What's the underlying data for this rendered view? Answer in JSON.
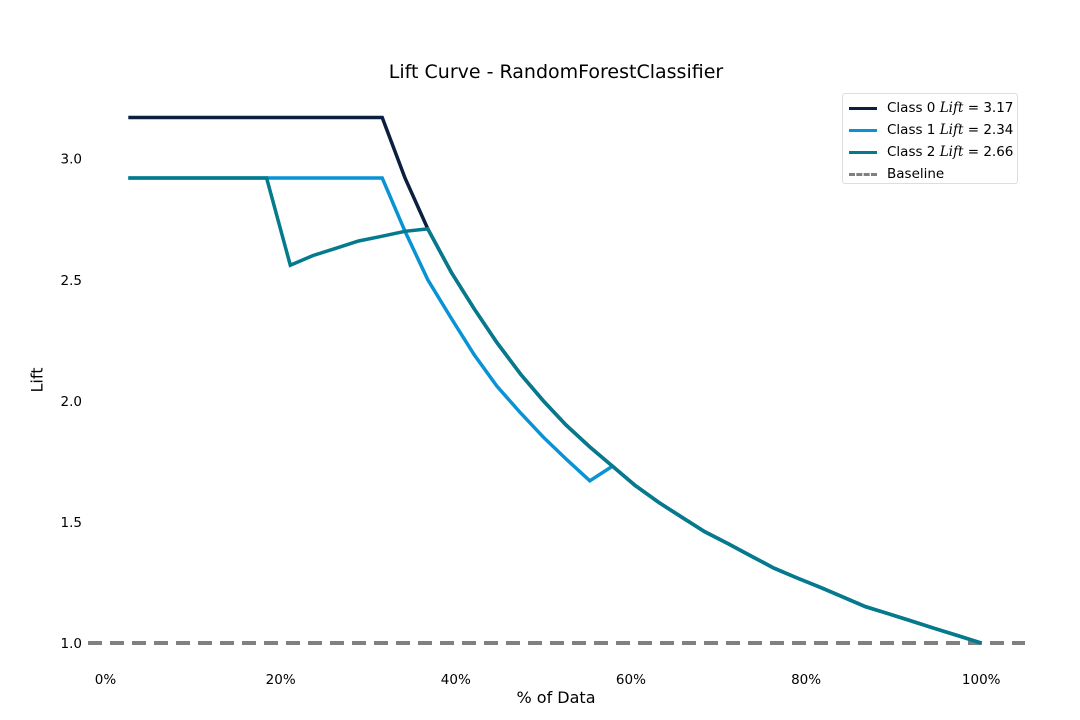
{
  "chart_data": {
    "type": "line",
    "title": "Lift Curve - RandomForestClassifier",
    "xlabel": "% of Data",
    "ylabel": "Lift",
    "xlim": [
      -2,
      105
    ],
    "ylim": [
      0.93,
      3.3
    ],
    "x_ticks": [
      0,
      20,
      40,
      60,
      80,
      100
    ],
    "x_tick_labels": [
      "0%",
      "20%",
      "40%",
      "60%",
      "80%",
      "100%"
    ],
    "y_ticks": [
      1.0,
      1.5,
      2.0,
      2.5,
      3.0
    ],
    "y_tick_labels": [
      "1.0",
      "1.5",
      "2.0",
      "2.5",
      "3.0"
    ],
    "grid": false,
    "legend_position": "top-right",
    "series": [
      {
        "name": "Class 0 Lift = 3.17",
        "legend_prefix": "Class 0 ",
        "legend_italic": "Lift",
        "legend_suffix": " = 3.17",
        "color": "#0b1f3f",
        "x": [
          2.6,
          31.6,
          34.2,
          36.8,
          39.5,
          42.1,
          44.7,
          47.4,
          50.0,
          52.6,
          55.3,
          57.9,
          60.5,
          63.2,
          65.8,
          68.4,
          71.1,
          73.7,
          76.3,
          78.9,
          81.6,
          84.2,
          86.8,
          89.5,
          92.1,
          94.7,
          97.4,
          100.0
        ],
        "y": [
          3.17,
          3.17,
          2.92,
          2.71,
          2.53,
          2.38,
          2.24,
          2.11,
          2.0,
          1.9,
          1.81,
          1.73,
          1.65,
          1.58,
          1.52,
          1.46,
          1.41,
          1.36,
          1.31,
          1.27,
          1.23,
          1.19,
          1.15,
          1.12,
          1.09,
          1.06,
          1.03,
          1.0
        ]
      },
      {
        "name": "Class 1 Lift = 2.34",
        "legend_prefix": "Class 1 ",
        "legend_italic": "Lift",
        "legend_suffix": " = 2.34",
        "color": "#0993d4",
        "x": [
          2.6,
          31.6,
          34.2,
          36.8,
          39.5,
          42.1,
          44.7,
          47.4,
          50.0,
          52.6,
          55.3,
          57.9,
          60.5,
          63.2,
          65.8,
          68.4,
          71.1,
          73.7,
          76.3,
          78.9,
          81.6,
          84.2,
          86.8,
          89.5,
          92.1,
          94.7,
          97.4,
          100.0
        ],
        "y": [
          2.92,
          2.92,
          2.7,
          2.5,
          2.34,
          2.19,
          2.06,
          1.95,
          1.85,
          1.76,
          1.67,
          1.73,
          1.65,
          1.58,
          1.52,
          1.46,
          1.41,
          1.36,
          1.31,
          1.27,
          1.23,
          1.19,
          1.15,
          1.12,
          1.09,
          1.06,
          1.03,
          1.0
        ]
      },
      {
        "name": "Class 2 Lift = 2.66",
        "legend_prefix": "Class 2 ",
        "legend_italic": "Lift",
        "legend_suffix": " = 2.66",
        "color": "#047a8c",
        "x": [
          2.6,
          18.4,
          21.1,
          23.7,
          26.3,
          28.9,
          31.6,
          34.2,
          36.8,
          39.5,
          42.1,
          44.7,
          47.4,
          50.0,
          52.6,
          55.3,
          57.9,
          60.5,
          63.2,
          65.8,
          68.4,
          71.1,
          73.7,
          76.3,
          78.9,
          81.6,
          84.2,
          86.8,
          89.5,
          92.1,
          94.7,
          97.4,
          100.0
        ],
        "y": [
          2.92,
          2.92,
          2.56,
          2.6,
          2.63,
          2.66,
          2.68,
          2.7,
          2.71,
          2.53,
          2.38,
          2.24,
          2.11,
          2.0,
          1.9,
          1.81,
          1.73,
          1.65,
          1.58,
          1.52,
          1.46,
          1.41,
          1.36,
          1.31,
          1.27,
          1.23,
          1.19,
          1.15,
          1.12,
          1.09,
          1.06,
          1.03,
          1.0
        ]
      }
    ],
    "baseline": {
      "name": "Baseline",
      "color": "#808080",
      "y": 1.0,
      "style": "dashed"
    }
  }
}
